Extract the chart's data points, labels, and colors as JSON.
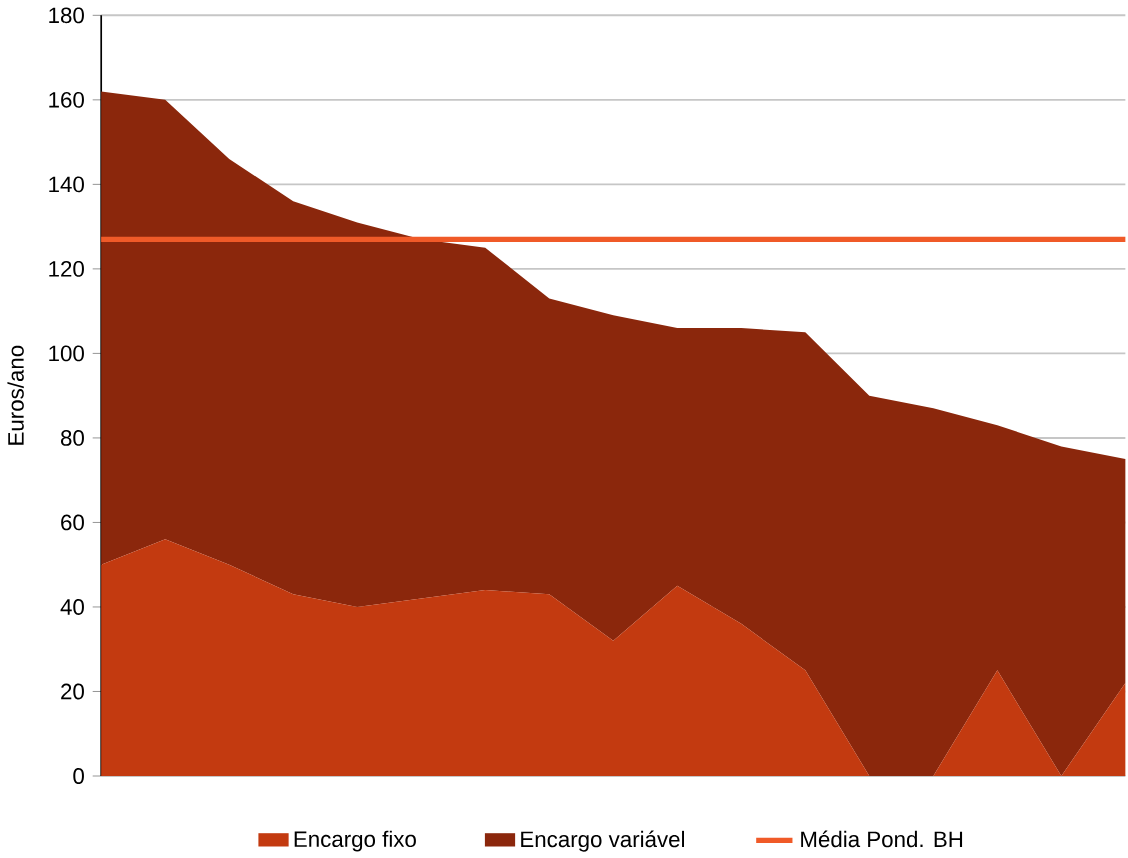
{
  "chart_data": {
    "type": "area",
    "stacked": true,
    "ylabel": "Euros/ano",
    "categories": [
      null,
      null,
      null,
      null,
      null,
      null,
      null,
      null,
      null,
      null,
      null,
      null,
      null,
      null,
      null,
      null,
      null
    ],
    "series": [
      {
        "name": "Encargo fixo",
        "color": "#c33a10",
        "values": [
          50,
          56,
          50,
          43,
          40,
          42,
          44,
          43,
          32,
          45,
          36,
          25,
          0,
          0,
          25,
          0,
          22
        ]
      },
      {
        "name": "Encargo variável",
        "color": "#8b270c",
        "values": [
          112,
          104,
          96,
          93,
          91,
          85,
          81,
          70,
          77,
          61,
          70,
          80,
          90,
          87,
          58,
          78,
          53
        ]
      }
    ],
    "ref_lines": [
      {
        "axis": "y",
        "value": 127,
        "label": "Média Pond. BH",
        "color": "#f05a28"
      }
    ],
    "ylim": [
      0,
      180
    ],
    "yticks": [
      0,
      20,
      40,
      60,
      80,
      100,
      120,
      140,
      160,
      180
    ],
    "grid": "y",
    "legend": "bottom",
    "tick_labels": "y"
  }
}
